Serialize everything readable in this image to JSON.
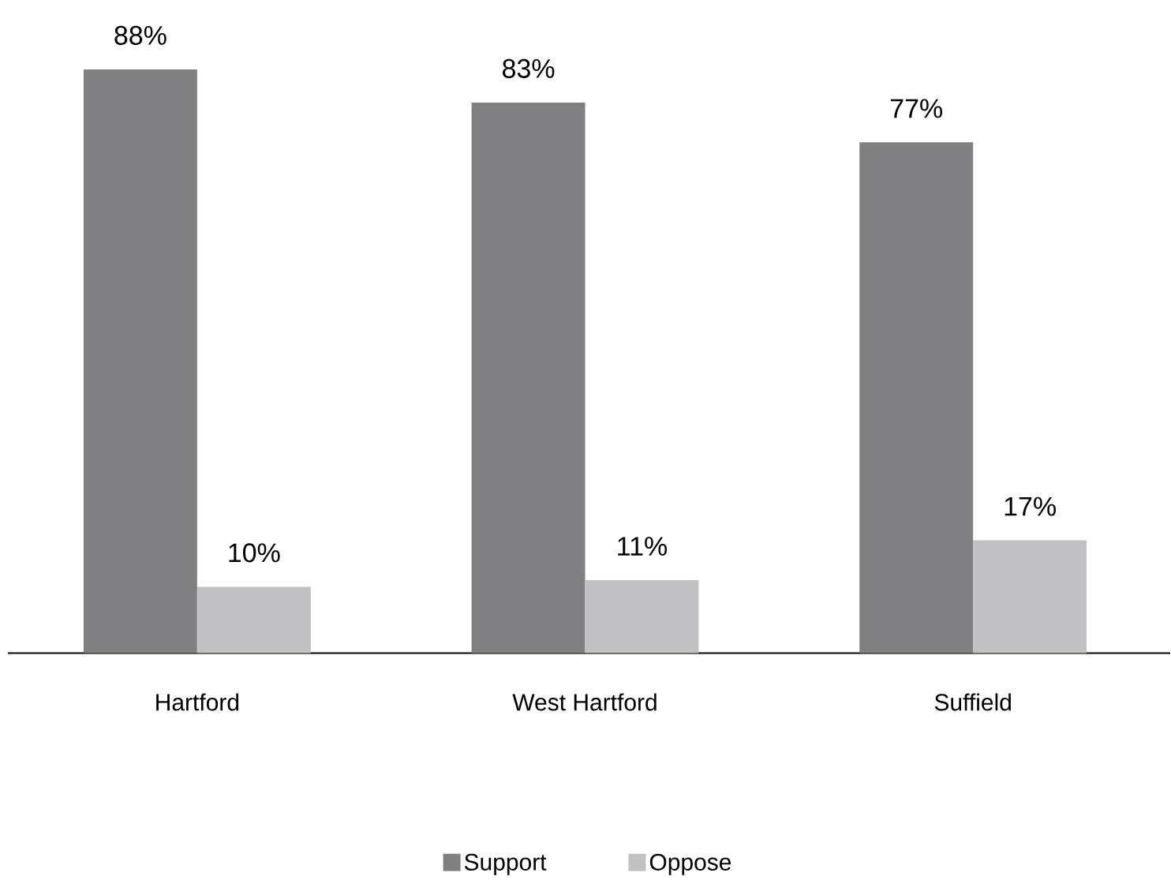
{
  "chart_data": {
    "type": "bar",
    "categories": [
      "Hartford",
      "West Hartford",
      "Suffield"
    ],
    "series": [
      {
        "name": "Support",
        "color": "#808083",
        "values": [
          88,
          83,
          77
        ],
        "value_labels": [
          "88%",
          "83%",
          "77%"
        ]
      },
      {
        "name": "Oppose",
        "color": "#c1c1c4",
        "values": [
          10,
          11,
          17
        ],
        "value_labels": [
          "10%",
          "11%",
          "17%"
        ]
      }
    ],
    "legend": "bottom"
  }
}
